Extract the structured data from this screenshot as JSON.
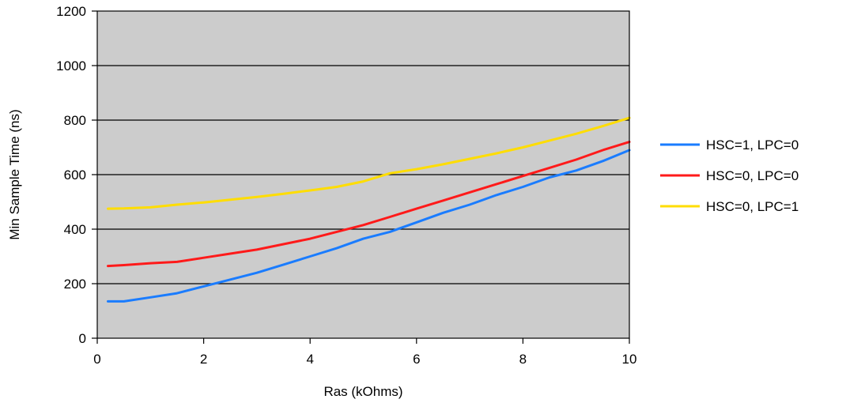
{
  "chart_data": {
    "type": "line",
    "title": "",
    "xlabel": "Ras (kOhms)",
    "ylabel": "Min Sample Time (ns)",
    "xlim": [
      0,
      10
    ],
    "ylim": [
      0,
      1200
    ],
    "xticks": [
      "0",
      "2",
      "4",
      "6",
      "8",
      "10"
    ],
    "yticks": [
      "0",
      "200",
      "400",
      "600",
      "800",
      "1000",
      "1200"
    ],
    "grid": "horizontal",
    "plot_background": "#cccccc",
    "legend_position": "right",
    "series": [
      {
        "name": "HSC=1, LPC=0",
        "color": "#1a7cff",
        "points": [
          [
            0.2,
            135
          ],
          [
            0.5,
            135
          ],
          [
            1,
            150
          ],
          [
            1.5,
            165
          ],
          [
            2,
            190
          ],
          [
            2.5,
            215
          ],
          [
            3,
            240
          ],
          [
            3.5,
            270
          ],
          [
            4,
            300
          ],
          [
            4.5,
            330
          ],
          [
            5,
            365
          ],
          [
            5.5,
            390
          ],
          [
            6,
            425
          ],
          [
            6.5,
            460
          ],
          [
            7,
            490
          ],
          [
            7.5,
            525
          ],
          [
            8,
            555
          ],
          [
            8.5,
            590
          ],
          [
            9,
            615
          ],
          [
            9.5,
            650
          ],
          [
            10,
            690
          ]
        ]
      },
      {
        "name": "HSC=0, LPC=0",
        "color": "#ff1a1a",
        "points": [
          [
            0.2,
            265
          ],
          [
            0.5,
            268
          ],
          [
            1,
            275
          ],
          [
            1.5,
            280
          ],
          [
            2,
            295
          ],
          [
            2.5,
            310
          ],
          [
            3,
            325
          ],
          [
            3.5,
            345
          ],
          [
            4,
            365
          ],
          [
            4.5,
            390
          ],
          [
            5,
            415
          ],
          [
            5.5,
            445
          ],
          [
            6,
            475
          ],
          [
            6.5,
            505
          ],
          [
            7,
            535
          ],
          [
            7.5,
            565
          ],
          [
            8,
            595
          ],
          [
            8.5,
            625
          ],
          [
            9,
            655
          ],
          [
            9.5,
            690
          ],
          [
            10,
            720
          ]
        ]
      },
      {
        "name": "HSC=0, LPC=1",
        "color": "#ffdd00",
        "points": [
          [
            0.2,
            475
          ],
          [
            0.5,
            476
          ],
          [
            1,
            480
          ],
          [
            1.5,
            490
          ],
          [
            2,
            498
          ],
          [
            2.5,
            508
          ],
          [
            3,
            518
          ],
          [
            3.5,
            530
          ],
          [
            4,
            542
          ],
          [
            4.5,
            555
          ],
          [
            5,
            575
          ],
          [
            5.5,
            605
          ],
          [
            6,
            620
          ],
          [
            6.5,
            638
          ],
          [
            7,
            658
          ],
          [
            7.5,
            678
          ],
          [
            8,
            700
          ],
          [
            8.5,
            725
          ],
          [
            9,
            750
          ],
          [
            9.5,
            778
          ],
          [
            10,
            808
          ]
        ]
      }
    ]
  }
}
